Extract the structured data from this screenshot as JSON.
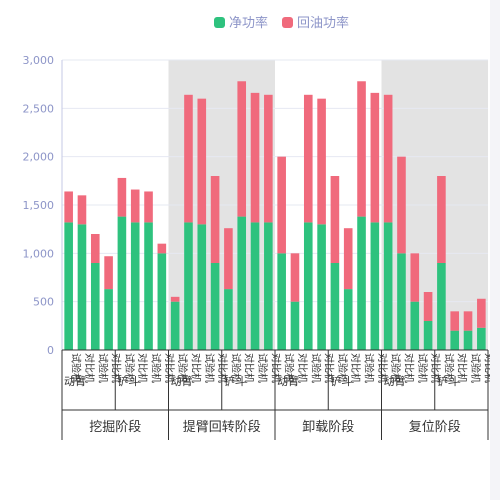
{
  "chart_data": {
    "type": "bar",
    "stacked": true,
    "ylim": [
      0,
      3000
    ],
    "yticks": [
      0,
      500,
      1000,
      1500,
      2000,
      2500,
      3000
    ],
    "ytick_labels": [
      "0",
      "500",
      "1,000",
      "1,500",
      "2,000",
      "2,500",
      "3,000"
    ],
    "legend_position": "top-center",
    "grid": true,
    "categories": [
      "试验机",
      "对比机",
      "试验机",
      "对比机",
      "试验机",
      "对比机",
      "试验机",
      "对比机",
      "试验机",
      "对比机",
      "试验机",
      "对比机",
      "试验机",
      "对比机",
      "试验机",
      "对比机",
      "试验机",
      "对比机",
      "试验机",
      "对比机",
      "试验机",
      "对比机",
      "试验机",
      "对比机",
      "试验机",
      "对比机",
      "试验机",
      "对比机",
      "试验机",
      "对比机",
      "试验机",
      "对比机"
    ],
    "groups": [
      {
        "label": "动臂",
        "start": 0,
        "count": 4
      },
      {
        "label": "铲斗",
        "start": 4,
        "count": 4
      },
      {
        "label": "动臂",
        "start": 8,
        "count": 4
      },
      {
        "label": "铲斗",
        "start": 12,
        "count": 4
      },
      {
        "label": "动臂",
        "start": 16,
        "count": 4
      },
      {
        "label": "铲斗",
        "start": 20,
        "count": 4
      },
      {
        "label": "动臂",
        "start": 24,
        "count": 4
      },
      {
        "label": "铲斗",
        "start": 28,
        "count": 4
      }
    ],
    "phases": [
      {
        "label": "挖掘阶段",
        "start": 0,
        "count": 8,
        "shaded": false
      },
      {
        "label": "提臂回转阶段",
        "start": 8,
        "count": 8,
        "shaded": true
      },
      {
        "label": "卸载阶段",
        "start": 16,
        "count": 8,
        "shaded": false
      },
      {
        "label": "复位阶段",
        "start": 24,
        "count": 8,
        "shaded": true
      }
    ],
    "series": [
      {
        "name": "净功率",
        "color": "#2ec27e",
        "values": [
          1320,
          1300,
          900,
          630,
          1380,
          1320,
          1320,
          1000,
          500,
          1320,
          1300,
          900,
          630,
          1380,
          1320,
          1320,
          1000,
          500,
          1320,
          1300,
          900,
          630,
          1380,
          1320,
          1320,
          1000,
          500,
          300,
          900,
          200,
          200,
          230
        ]
      },
      {
        "name": "回油功率",
        "color": "#f06a7c",
        "values": [
          320,
          300,
          300,
          340,
          400,
          340,
          320,
          100,
          50,
          1320,
          1300,
          900,
          630,
          1400,
          1340,
          1320,
          1000,
          500,
          1320,
          1300,
          900,
          630,
          1400,
          1340,
          1320,
          1000,
          500,
          300,
          900,
          200,
          200,
          300
        ]
      }
    ]
  }
}
